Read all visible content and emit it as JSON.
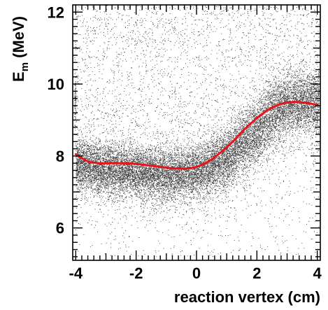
{
  "chart_data": {
    "type": "scatter",
    "title": "",
    "xlabel": "reaction vertex (cm)",
    "ylabel": {
      "main": "E",
      "subscript": "m",
      "unit": "(MeV)"
    },
    "xlim": [
      -4.1,
      4.1
    ],
    "ylim": [
      5.1,
      12.2
    ],
    "x_ticks": [
      -4,
      -2,
      0,
      2,
      4
    ],
    "y_ticks": [
      6,
      8,
      10,
      12
    ],
    "x_tick_labels": [
      "-4",
      "-2",
      "0",
      "2",
      "4"
    ],
    "y_tick_labels": [
      "6",
      "8",
      "10",
      "12"
    ],
    "grid": false,
    "legend": "none",
    "colors": {
      "scatter": "#000000",
      "fit_curve": "#e8141c",
      "axes": "#000000"
    },
    "series": [
      {
        "kind": "scatter",
        "description_band": [
          [
            -4.0,
            7.75,
            0.35
          ],
          [
            -3.0,
            7.65,
            0.35
          ],
          [
            -2.0,
            7.55,
            0.35
          ],
          [
            -1.0,
            7.45,
            0.35
          ],
          [
            0.0,
            7.55,
            0.35
          ],
          [
            1.0,
            7.95,
            0.4
          ],
          [
            2.0,
            8.7,
            0.45
          ],
          [
            2.5,
            9.15,
            0.45
          ],
          [
            3.0,
            9.45,
            0.4
          ],
          [
            3.5,
            9.5,
            0.4
          ],
          [
            4.0,
            9.45,
            0.4
          ]
        ],
        "band_points": 16000,
        "background_points": 2800
      },
      {
        "kind": "line",
        "x": [
          -4.0,
          -3.6,
          -3.2,
          -2.8,
          -2.4,
          -2.0,
          -1.6,
          -1.2,
          -0.8,
          -0.4,
          0.0,
          0.4,
          0.8,
          1.2,
          1.6,
          2.0,
          2.4,
          2.8,
          3.2,
          3.6,
          4.0
        ],
        "y": [
          8.05,
          7.85,
          7.8,
          7.8,
          7.8,
          7.78,
          7.74,
          7.7,
          7.66,
          7.65,
          7.7,
          7.85,
          8.1,
          8.4,
          8.75,
          9.05,
          9.3,
          9.45,
          9.5,
          9.48,
          9.42
        ]
      }
    ]
  }
}
